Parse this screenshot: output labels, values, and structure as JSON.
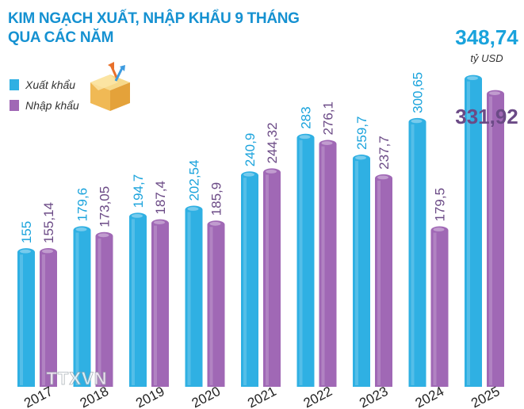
{
  "title_lines": [
    "KIM NGẠCH XUẤT, NHẬP KHẨU 9 THÁNG",
    "QUA CÁC NĂM"
  ],
  "unit": "tỷ USD",
  "watermark": "TTXVN",
  "colors": {
    "title": "#1591d1",
    "export": "#2fb0e3",
    "import": "#a068b5",
    "export_label": "#1aa3dc",
    "import_label": "#6b4a86"
  },
  "legend": {
    "export": {
      "label": "Xuất khẩu",
      "color": "#2fb0e3"
    },
    "import": {
      "label": "Nhập khẩu",
      "color": "#a068b5"
    }
  },
  "chart_data": {
    "type": "bar",
    "categories": [
      "2017",
      "2018",
      "2019",
      "2020",
      "2021",
      "2022",
      "2023",
      "2024",
      "2025"
    ],
    "series": [
      {
        "name": "Xuất khẩu",
        "values": [
          155,
          179.6,
          194.7,
          202.54,
          240.9,
          283,
          259.7,
          300.65,
          348.74
        ],
        "labels": [
          "155",
          "179,6",
          "194,7",
          "202,54",
          "240,9",
          "283",
          "259,7",
          "300,65",
          "348,74"
        ]
      },
      {
        "name": "Nhập khẩu",
        "values": [
          155.14,
          173.05,
          187.4,
          185.9,
          244.32,
          276.1,
          237.7,
          179.5,
          331.92
        ],
        "labels": [
          "155,14",
          "173,05",
          "187,4",
          "185,9",
          "244,32",
          "276,1",
          "237,7",
          "179,5",
          "331,92"
        ]
      }
    ],
    "ylim": [
      0,
      360
    ]
  }
}
